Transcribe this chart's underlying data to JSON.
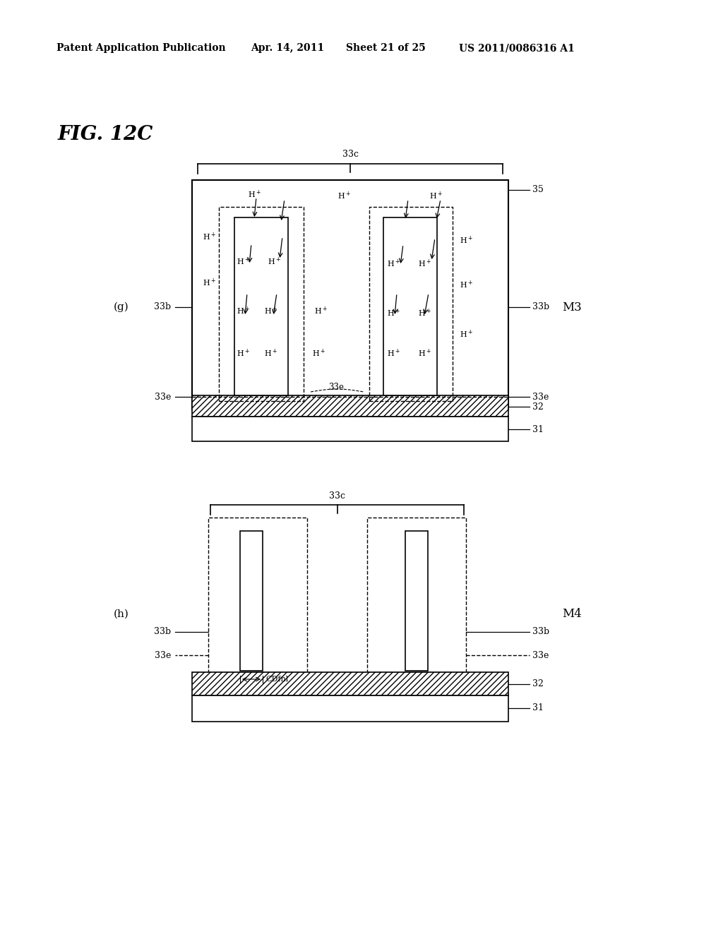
{
  "bg_color": "#ffffff",
  "header_text": "Patent Application Publication",
  "header_date": "Apr. 14, 2011",
  "header_sheet": "Sheet 21 of 25",
  "header_patent": "US 2011/0086316 A1",
  "fig_label": "FIG. 12C",
  "diagram_g_label": "(g)",
  "diagram_h_label": "(h)",
  "M3_label": "M3",
  "M4_label": "M4",
  "label_33c": "33c",
  "label_35": "35",
  "label_33b": "33b",
  "label_33e": "33e",
  "label_32": "32",
  "label_31": "31",
  "label_CDfnl": "CDfnl"
}
